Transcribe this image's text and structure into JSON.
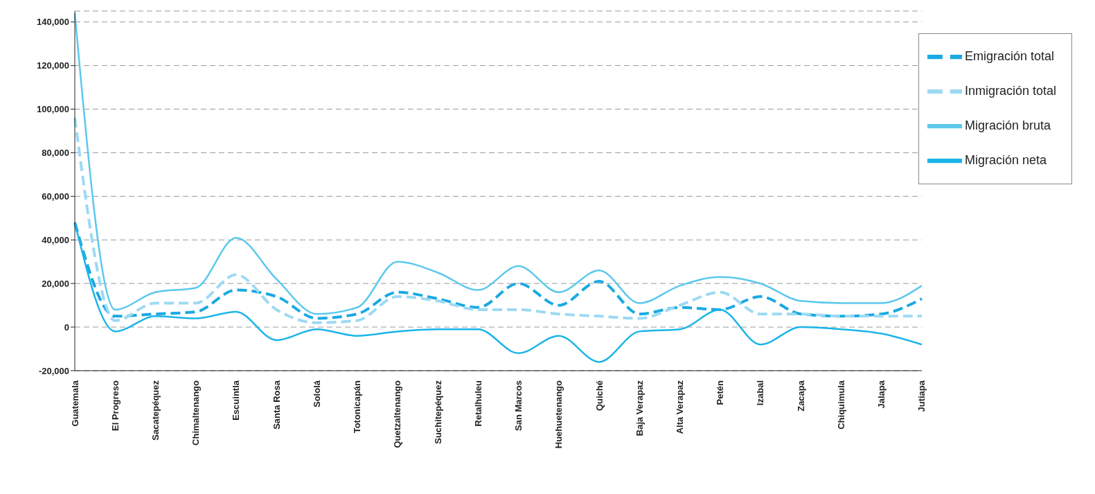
{
  "chart_data": {
    "type": "line",
    "categories": [
      "Guatemala",
      "El Progreso",
      "Sacatepéquez",
      "Chimaltenango",
      "Escuintla",
      "Santa Rosa",
      "Sololá",
      "Totonicapán",
      "Quetzaltenango",
      "Suchitepéquez",
      "Retalhuleu",
      "San Marcos",
      "Huehuetenango",
      "Quiché",
      "Baja Verapaz",
      "Alta Verapaz",
      "Petén",
      "Izabal",
      "Zacapa",
      "Chiquimula",
      "Jalapa",
      "Jutiapa"
    ],
    "series": [
      {
        "name": "Emigración total",
        "color": "#1aa9e3",
        "line_style": "dashed",
        "values": [
          48000,
          5000,
          6000,
          7000,
          17000,
          14000,
          4000,
          6000,
          16000,
          13000,
          9000,
          20000,
          10000,
          21000,
          6000,
          9000,
          8000,
          14000,
          6000,
          5000,
          6000,
          13000
        ]
      },
      {
        "name": "Inmigración total",
        "color": "#9dd9f3",
        "line_style": "dashed",
        "values": [
          96000,
          3000,
          11000,
          11000,
          24000,
          8000,
          2000,
          3000,
          14000,
          12000,
          8000,
          8000,
          6000,
          5000,
          4000,
          10000,
          16000,
          6000,
          6000,
          5000,
          5000,
          5000
        ]
      },
      {
        "name": "Migración neta",
        "color": "#1ab4e8",
        "line_style": "solid",
        "values": [
          48000,
          -2000,
          5000,
          4000,
          7000,
          -6000,
          -1000,
          -4000,
          -2000,
          -1000,
          -1000,
          -12000,
          -4000,
          -16000,
          -2000,
          -1000,
          8000,
          -8000,
          0,
          -1000,
          -3000,
          -8000
        ]
      },
      {
        "name": "Migración bruta",
        "color": "#5bc8ee",
        "line_style": "solid",
        "values": [
          144000,
          8000,
          16000,
          18000,
          41000,
          22000,
          6000,
          9000,
          30000,
          25000,
          17000,
          28000,
          16000,
          26000,
          11000,
          19000,
          23000,
          20000,
          12000,
          11000,
          11000,
          19000
        ]
      }
    ],
    "ylim": [
      -20000,
      145000
    ],
    "yticks": [
      {
        "value": -20000,
        "label": "-20,000"
      },
      0,
      {
        "value": 20000,
        "label": "20,000"
      },
      {
        "value": 40000,
        "label": "40,000"
      },
      {
        "value": 60000,
        "label": "60,000"
      },
      {
        "value": 80000,
        "label": "80,000"
      },
      {
        "value": 100000,
        "label": "100,000"
      },
      {
        "value": 120000,
        "label": "120,000"
      },
      {
        "value": 140000,
        "label": "140,000"
      }
    ],
    "grid": "y",
    "legend": "top right",
    "marker": "none"
  }
}
